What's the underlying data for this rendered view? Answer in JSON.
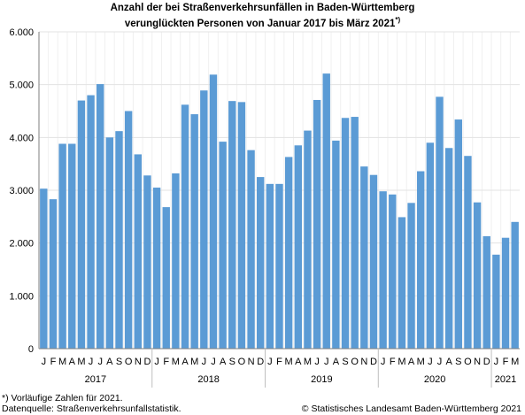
{
  "chart_data": {
    "type": "bar",
    "title_line1": "Anzahl der bei Straßenverkehrsunfällen in Baden-Württemberg",
    "title_line2": "verunglückten Personen von Januar 2017 bis März 2021",
    "title_sup": "*)",
    "xlabel": "",
    "ylabel": "",
    "ylim": [
      0,
      6000
    ],
    "yticks": [
      "0",
      "1.000",
      "2.000",
      "3.000",
      "4.000",
      "5.000",
      "6.000"
    ],
    "grid": true,
    "color": "#5b9bd5",
    "month_letters": [
      "J",
      "F",
      "M",
      "A",
      "M",
      "J",
      "J",
      "A",
      "S",
      "O",
      "N",
      "D"
    ],
    "years": [
      {
        "label": "2017",
        "months": 12
      },
      {
        "label": "2018",
        "months": 12
      },
      {
        "label": "2019",
        "months": 12
      },
      {
        "label": "2020",
        "months": 12
      },
      {
        "label": "2021",
        "months": 3
      }
    ],
    "values": [
      3030,
      2830,
      3880,
      3880,
      4700,
      4800,
      5010,
      4000,
      4120,
      4500,
      3680,
      3280,
      3050,
      2680,
      3320,
      4620,
      4440,
      4890,
      5190,
      3920,
      4690,
      4670,
      3760,
      3250,
      3120,
      3120,
      3630,
      3850,
      4130,
      4710,
      5210,
      3940,
      4370,
      4390,
      3450,
      3290,
      2980,
      2920,
      2490,
      2760,
      3360,
      3900,
      4770,
      3800,
      4340,
      3650,
      2770,
      2130,
      1780,
      2100,
      2400
    ]
  },
  "footer": {
    "note": "*) Vorläufige Zahlen für 2021.",
    "source": "Datenquelle: Straßenverkehrsunfallstatistik.",
    "copyright": "© Statistisches Landesamt Baden-Württemberg 2021"
  }
}
